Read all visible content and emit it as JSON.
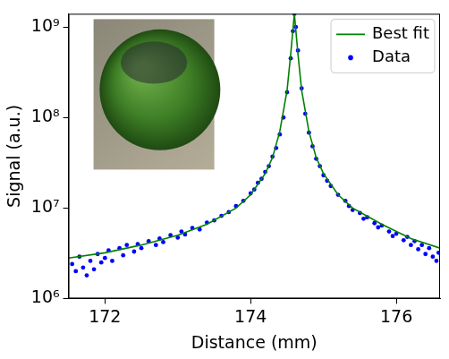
{
  "chart_data": {
    "type": "scatter",
    "x_label": "Distance (mm)",
    "y_label": "Signal (a.u.)",
    "log": "y",
    "grid": false,
    "legend": "upper right",
    "xlim": [
      171.5,
      176.6
    ],
    "xticks": [
      172,
      174,
      176
    ],
    "ylim": [
      1000000,
      1400000000
    ],
    "yticks": [
      {
        "value": 1000000,
        "label": "10⁶"
      },
      {
        "value": 10000000,
        "label": "10⁷"
      },
      {
        "value": 100000000,
        "label": "10⁸"
      },
      {
        "value": 1000000000,
        "label": "10⁹"
      }
    ],
    "series": [
      {
        "name": "Best fit",
        "type": "line",
        "color": "#008000",
        "line_style": "solid",
        "x": [
          171.5,
          172.0,
          172.5,
          173.0,
          173.4,
          173.8,
          174.0,
          174.2,
          174.3,
          174.4,
          174.5,
          174.55,
          174.6,
          174.65,
          174.7,
          174.8,
          174.9,
          175.0,
          175.2,
          175.4,
          175.8,
          176.2,
          176.6
        ],
        "values": [
          2800000,
          3200000,
          3900000,
          5000000,
          6600000,
          10000000,
          14000000,
          24000000,
          36000000,
          70000000,
          200000000,
          500000000,
          1400000000,
          500000000,
          200000000,
          70000000,
          36000000,
          24000000,
          14000000,
          10000000,
          6600000,
          4600000,
          3600000
        ]
      },
      {
        "name": "Data",
        "type": "scatter",
        "color": "#0000ff",
        "marker": "circle",
        "x": [
          171.55,
          171.6,
          171.65,
          171.7,
          171.75,
          171.8,
          171.85,
          171.9,
          171.95,
          172.0,
          172.05,
          172.1,
          172.2,
          172.25,
          172.3,
          172.4,
          172.45,
          172.5,
          172.6,
          172.7,
          172.75,
          172.8,
          172.9,
          173.0,
          173.05,
          173.1,
          173.2,
          173.3,
          173.4,
          173.5,
          173.6,
          173.7,
          173.8,
          173.9,
          174.0,
          174.05,
          174.1,
          174.15,
          174.2,
          174.25,
          174.3,
          174.35,
          174.4,
          174.45,
          174.5,
          174.55,
          174.58,
          174.6,
          174.62,
          174.65,
          174.7,
          174.75,
          174.8,
          174.85,
          174.9,
          174.95,
          175.0,
          175.05,
          175.1,
          175.2,
          175.3,
          175.35,
          175.4,
          175.5,
          175.55,
          175.6,
          175.7,
          175.75,
          175.8,
          175.9,
          175.95,
          176.0,
          176.1,
          176.15,
          176.2,
          176.25,
          176.3,
          176.35,
          176.4,
          176.45,
          176.5,
          176.55,
          176.58
        ],
        "values": [
          2400000,
          2000000,
          2900000,
          2200000,
          1800000,
          2600000,
          2100000,
          3100000,
          2500000,
          2800000,
          3400000,
          2600000,
          3600000,
          3000000,
          3900000,
          3300000,
          4000000,
          3600000,
          4300000,
          3900000,
          4600000,
          4200000,
          5000000,
          4700000,
          5500000,
          5100000,
          6000000,
          5800000,
          6900000,
          7300000,
          8200000,
          9000000,
          10500000,
          12000000,
          14500000,
          16000000,
          19000000,
          21000000,
          25000000,
          29000000,
          37000000,
          46000000,
          65000000,
          100000000,
          190000000,
          450000000,
          900000000,
          1400000000,
          1000000000,
          550000000,
          210000000,
          110000000,
          68000000,
          48000000,
          35000000,
          29000000,
          23000000,
          20000000,
          17500000,
          14000000,
          12000000,
          10500000,
          9500000,
          8800000,
          7600000,
          7900000,
          6800000,
          6100000,
          6400000,
          5500000,
          4900000,
          5200000,
          4400000,
          4800000,
          3900000,
          4300000,
          3500000,
          3900000,
          3100000,
          3600000,
          2900000,
          2600000,
          3200000
        ]
      }
    ]
  }
}
